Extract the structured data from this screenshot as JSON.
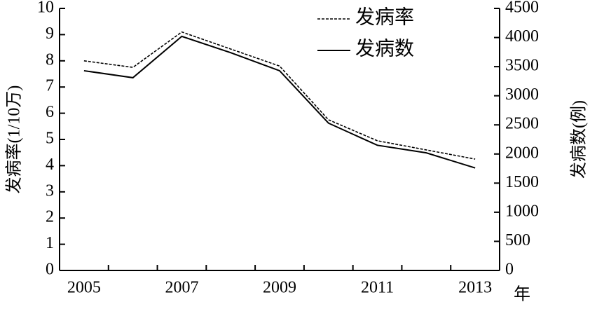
{
  "chart_data": {
    "type": "line",
    "categories": [
      "2005",
      null,
      "2007",
      null,
      "2009",
      null,
      "2011",
      null,
      "2013"
    ],
    "x_label": "年",
    "y_label": "发病率(1/10万)",
    "y2_label": "发病数(例)",
    "series": [
      {
        "name": "发病率",
        "color": "#000000",
        "dash": "dashed",
        "values": [
          8.0,
          7.75,
          9.1,
          8.45,
          7.8,
          5.75,
          4.95,
          4.6,
          4.25
        ]
      },
      {
        "name": "发病数",
        "color": "#000000",
        "dash": "solid",
        "axis": "y2",
        "values": [
          3430,
          3310,
          4020,
          3740,
          3430,
          2530,
          2150,
          2020,
          1760
        ]
      }
    ],
    "ylim": [
      0,
      10
    ],
    "yticks": [
      0,
      1,
      2,
      3,
      4,
      5,
      6,
      7,
      8,
      9,
      10
    ],
    "y2lim": [
      0,
      4500
    ],
    "y2ticks": [
      0,
      500,
      1000,
      1500,
      2000,
      2500,
      3000,
      3500,
      4000,
      4500
    ],
    "legend": "upper right"
  }
}
